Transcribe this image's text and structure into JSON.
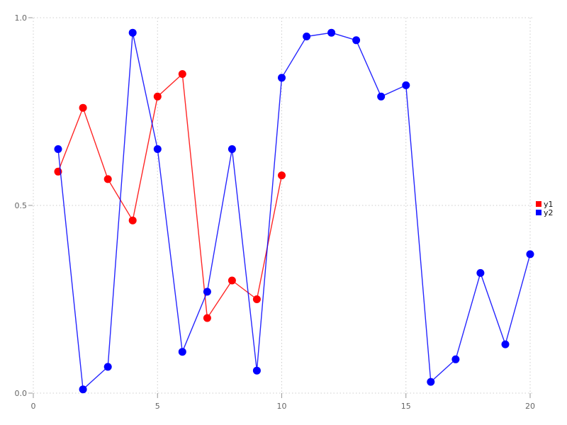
{
  "chart_data": {
    "type": "line",
    "title": "",
    "xlabel": "",
    "ylabel": "",
    "xlim": [
      0,
      20
    ],
    "ylim": [
      0.0,
      1.0
    ],
    "x_ticks": [
      0,
      5,
      10,
      15,
      20
    ],
    "x_tick_labels": [
      "0",
      "5",
      "10",
      "15",
      "20"
    ],
    "y_ticks": [
      0.0,
      0.5,
      1.0
    ],
    "y_tick_labels": [
      "0.0",
      "0.5",
      "1.0"
    ],
    "grid": "dotted",
    "legend_position": "right",
    "marker": "circle",
    "series": [
      {
        "name": "y1",
        "color": "#ff0000",
        "x": [
          1,
          2,
          3,
          4,
          5,
          6,
          7,
          8,
          9,
          10
        ],
        "values": [
          0.59,
          0.76,
          0.57,
          0.46,
          0.79,
          0.85,
          0.2,
          0.3,
          0.25,
          0.58
        ]
      },
      {
        "name": "y2",
        "color": "#0000ff",
        "x": [
          1,
          2,
          3,
          4,
          5,
          6,
          7,
          8,
          9,
          10,
          11,
          12,
          13,
          14,
          15,
          16,
          17,
          18,
          19,
          20
        ],
        "values": [
          0.65,
          0.01,
          0.07,
          0.96,
          0.65,
          0.11,
          0.27,
          0.65,
          0.06,
          0.84,
          0.95,
          0.96,
          0.94,
          0.79,
          0.82,
          0.03,
          0.09,
          0.32,
          0.13,
          0.37
        ]
      }
    ]
  },
  "colors": {
    "background": "#ffffff",
    "grid": "#cccccc",
    "tick_mark": "#999999",
    "tick_label": "#666666",
    "legend_text": "#111111"
  }
}
